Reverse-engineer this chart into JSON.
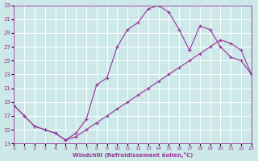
{
  "xlabel": "Windchill (Refroidissement éolien,°C)",
  "bg_color": "#cce8e8",
  "line_color": "#993399",
  "grid_color": "#ffffff",
  "xlim": [
    0,
    23
  ],
  "ylim": [
    13,
    33
  ],
  "xticks": [
    0,
    1,
    2,
    3,
    4,
    5,
    6,
    7,
    8,
    9,
    10,
    11,
    12,
    13,
    14,
    15,
    16,
    17,
    18,
    19,
    20,
    21,
    22,
    23
  ],
  "yticks": [
    13,
    15,
    17,
    19,
    21,
    23,
    25,
    27,
    29,
    31,
    33
  ],
  "line1_x": [
    0,
    1,
    2,
    3,
    4,
    5,
    6,
    7,
    8,
    9,
    10,
    11,
    12,
    13,
    14,
    15,
    16,
    17
  ],
  "line1_y": [
    18.5,
    17.0,
    15.5,
    15.0,
    14.5,
    13.5,
    14.5,
    16.5,
    21.5,
    22.5,
    27.0,
    29.5,
    30.5,
    32.5,
    33.0,
    32.0,
    29.5,
    26.5
  ],
  "line2_x": [
    0,
    1,
    2,
    3,
    4,
    5,
    6,
    7,
    8,
    9,
    10,
    11,
    12,
    13,
    14,
    15,
    16,
    17,
    18,
    19,
    20,
    21,
    22,
    23
  ],
  "line2_y": [
    18.5,
    17.0,
    15.5,
    15.0,
    14.5,
    13.5,
    14.0,
    15.0,
    16.0,
    17.0,
    18.0,
    19.0,
    20.0,
    21.0,
    22.0,
    23.0,
    24.0,
    25.0,
    26.0,
    27.0,
    28.0,
    27.5,
    26.5,
    23.0
  ],
  "line3_x": [
    17,
    18,
    19,
    20,
    21,
    22,
    23
  ],
  "line3_y": [
    26.5,
    30.0,
    29.5,
    27.0,
    25.5,
    25.0,
    23.0
  ]
}
